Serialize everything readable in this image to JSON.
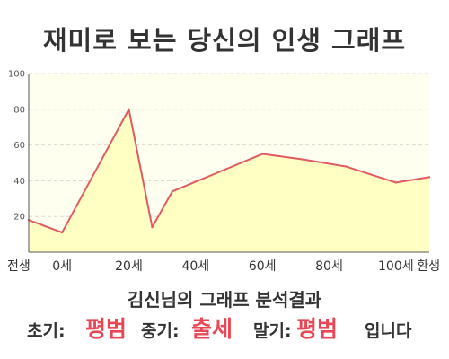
{
  "chart_data": {
    "type": "area",
    "title": "재미로 보는 당신의 인생 그래프",
    "x": [
      -10,
      0,
      20,
      27,
      33,
      60,
      72,
      85,
      100,
      110
    ],
    "y": [
      18,
      11,
      80,
      14,
      34,
      55,
      52,
      48,
      39,
      42
    ],
    "x_tick_labels": [
      {
        "x": -10,
        "label": "전생"
      },
      {
        "x": 0,
        "label": "0세"
      },
      {
        "x": 20,
        "label": "20세"
      },
      {
        "x": 40,
        "label": "40세"
      },
      {
        "x": 60,
        "label": "60세"
      },
      {
        "x": 80,
        "label": "80세"
      },
      {
        "x": 100,
        "label": "100세"
      },
      {
        "x": 110,
        "label": "환생"
      }
    ],
    "y_ticks": [
      20,
      40,
      60,
      80,
      100
    ],
    "ylim": [
      0,
      100
    ],
    "grid": true,
    "colors": {
      "line": "#e05a62",
      "fill": "#ffffc4",
      "grid": "#dcdcc8",
      "axis": "#555555"
    }
  },
  "result": {
    "summary": "김신님의 그래프 분석결과",
    "early_label": "초기:",
    "early_value": "평범",
    "middle_label": "중기:",
    "middle_value": "출세",
    "late_label": "말기:",
    "late_value": "평범",
    "ending": "입니다"
  }
}
